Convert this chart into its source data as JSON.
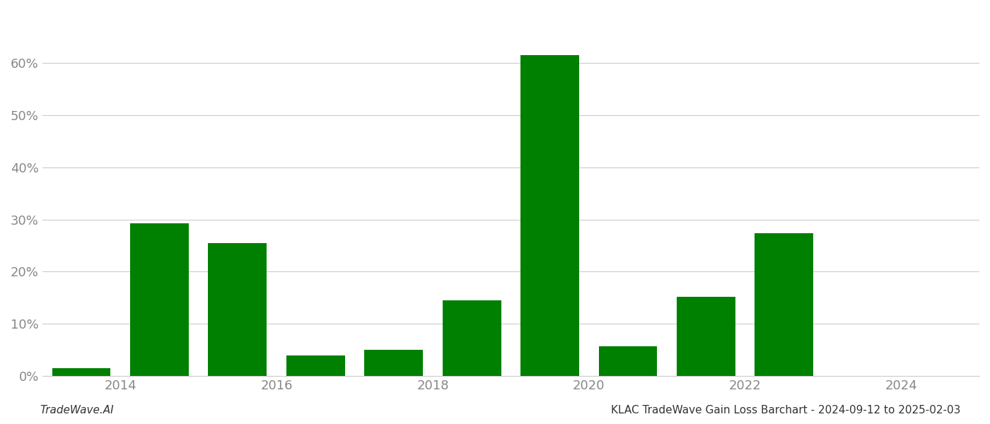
{
  "years": [
    2013.5,
    2014.5,
    2015.5,
    2016.5,
    2017.5,
    2018.5,
    2019.5,
    2020.5,
    2021.5,
    2022.5,
    2023.5
  ],
  "values": [
    1.5,
    29.3,
    25.4,
    4.0,
    5.0,
    14.5,
    61.5,
    5.7,
    15.2,
    27.3,
    0.0
  ],
  "bar_color": "#008000",
  "background_color": "#ffffff",
  "grid_color": "#cccccc",
  "tick_label_color": "#888888",
  "footer_left": "TradeWave.AI",
  "footer_right": "KLAC TradeWave Gain Loss Barchart - 2024-09-12 to 2025-02-03",
  "ylim": [
    0,
    70
  ],
  "yticks": [
    0,
    10,
    20,
    30,
    40,
    50,
    60
  ],
  "xtick_positions": [
    2014,
    2016,
    2018,
    2020,
    2022,
    2024
  ],
  "xtick_labels": [
    "2014",
    "2016",
    "2018",
    "2020",
    "2022",
    "2024"
  ],
  "xlim_left": 2013.0,
  "xlim_right": 2025.0,
  "bar_width": 0.75,
  "footer_fontsize": 11,
  "tick_fontsize": 13
}
